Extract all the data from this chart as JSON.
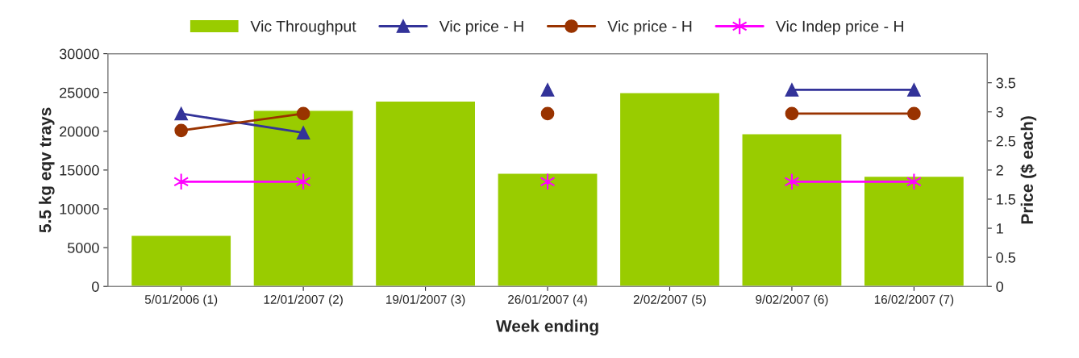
{
  "chart_data": {
    "type": "bar",
    "xlabel": "Week ending",
    "ylabel": "5.5 kg eqv trays",
    "y2label": "Price ($ each)",
    "categories": [
      "5/01/2006 (1)",
      "12/01/2007 (2)",
      "19/01/2007 (3)",
      "26/01/2007 (4)",
      "2/02/2007 (5)",
      "9/02/2007 (6)",
      "16/02/2007 (7)"
    ],
    "series": [
      {
        "name": "Vic Throughput",
        "color": "#99cc00",
        "values": [
          6600,
          22700,
          23900,
          14600,
          25000,
          19700,
          14200
        ]
      },
      {
        "name": "Vic price - H",
        "type": "line",
        "axis": "y2",
        "color": "#333399",
        "marker": "triangle",
        "values": [
          2.97,
          2.64,
          null,
          3.38,
          null,
          3.38,
          3.38
        ]
      },
      {
        "name": "Vic price - H",
        "type": "line",
        "axis": "y2",
        "color": "#993300",
        "marker": "circle",
        "values": [
          2.68,
          2.97,
          null,
          2.97,
          null,
          2.97,
          2.97
        ]
      },
      {
        "name": "Vic Indep price - H",
        "type": "line",
        "axis": "y2",
        "color": "#ff00ff",
        "marker": "cross",
        "values": [
          1.8,
          1.8,
          null,
          1.8,
          null,
          1.8,
          1.8
        ]
      }
    ],
    "ylim": [
      0,
      30000
    ],
    "yticks": [
      0,
      5000,
      10000,
      15000,
      20000,
      25000,
      30000
    ],
    "y2lim": [
      0,
      4
    ],
    "y2ticks": [
      0,
      0.5,
      1,
      1.5,
      2,
      2.5,
      3,
      3.5
    ],
    "grid": false,
    "legend": "top"
  }
}
